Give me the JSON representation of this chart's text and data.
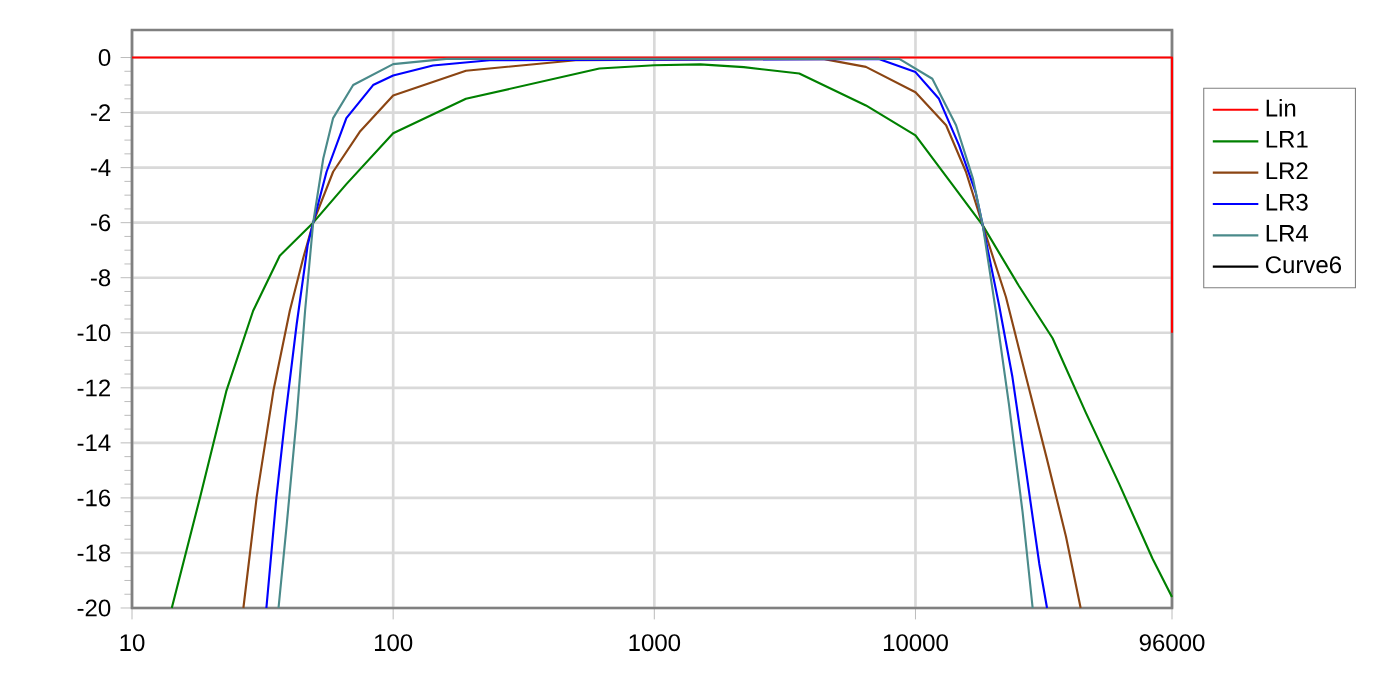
{
  "chart_data": {
    "type": "line",
    "log": "x",
    "grid": true,
    "legend": "right",
    "line_style": "solid",
    "xlim": [
      10,
      96000
    ],
    "ylim": [
      -20,
      1
    ],
    "xticks": [
      10,
      100,
      1000,
      10000,
      96000
    ],
    "yticks": [
      0,
      -2,
      -4,
      -6,
      -8,
      -10,
      -12,
      -14,
      -16,
      -18,
      -20
    ],
    "series": [
      {
        "name": "Lin",
        "color": "#ff0000",
        "x": [
          10,
          96000,
          96000
        ],
        "values": [
          0,
          0,
          -10
        ]
      },
      {
        "name": "LR1",
        "color": "#008000",
        "x": [
          14.2,
          18.2,
          23,
          29.1,
          36.8,
          49.4,
          66.2,
          100,
          190,
          616,
          1000,
          1500,
          2200,
          3590,
          6460,
          10000,
          13800,
          18100,
          24900,
          33500,
          44900,
          60300,
          80800,
          96000
        ],
        "values": [
          -20,
          -16,
          -12.1,
          -9.2,
          -7.2,
          -6,
          -4.6,
          -2.75,
          -1.5,
          -0.4,
          -0.28,
          -0.25,
          -0.35,
          -0.58,
          -1.74,
          -2.83,
          -4.6,
          -6.1,
          -8.3,
          -10.2,
          -12.9,
          -15.5,
          -18.2,
          -19.6
        ]
      },
      {
        "name": "LR2",
        "color": "#8b4513",
        "x": [
          26.7,
          30,
          34.8,
          40.2,
          45.2,
          49.4,
          58.9,
          74.5,
          100,
          190,
          500,
          4420,
          6460,
          10000,
          13100,
          15600,
          18100,
          22200,
          26500,
          31700,
          37700,
          42900
        ],
        "values": [
          -20,
          -16,
          -12.1,
          -9.2,
          -7.3,
          -6,
          -4.15,
          -2.7,
          -1.38,
          -0.48,
          -0.1,
          -0.05,
          -0.34,
          -1.26,
          -2.46,
          -4.15,
          -6.1,
          -8.7,
          -11.6,
          -14.5,
          -17.4,
          -20
        ]
      },
      {
        "name": "LR3",
        "color": "#0000ff",
        "x": [
          32.7,
          35.7,
          38.6,
          42.7,
          47.1,
          49.4,
          55.6,
          66.2,
          83.8,
          100,
          142,
          234,
          7240,
          10000,
          12300,
          14700,
          17000,
          18100,
          20900,
          23500,
          26500,
          29800,
          31900
        ],
        "values": [
          -20,
          -16,
          -13.1,
          -9.7,
          -6.8,
          -6,
          -4.15,
          -2.2,
          -1,
          -0.65,
          -0.29,
          -0.1,
          -0.05,
          -0.53,
          -1.5,
          -3.2,
          -4.9,
          -6.1,
          -9,
          -11.6,
          -15,
          -18.4,
          -20
        ]
      },
      {
        "name": "LR4",
        "color": "#4a8a8a",
        "x": [
          36.4,
          39.1,
          42.7,
          46,
          49.4,
          54,
          58.9,
          70.3,
          100,
          160,
          8670,
          11600,
          14300,
          16600,
          18100,
          20300,
          22800,
          25700,
          28100
        ],
        "values": [
          -20,
          -17,
          -13.1,
          -9.2,
          -6,
          -3.67,
          -2.2,
          -1,
          -0.24,
          -0.05,
          -0.05,
          -0.77,
          -2.46,
          -4.4,
          -6.1,
          -9.2,
          -12.6,
          -16.5,
          -20
        ]
      },
      {
        "name": "Curve6",
        "color": "#000000"
      }
    ]
  }
}
